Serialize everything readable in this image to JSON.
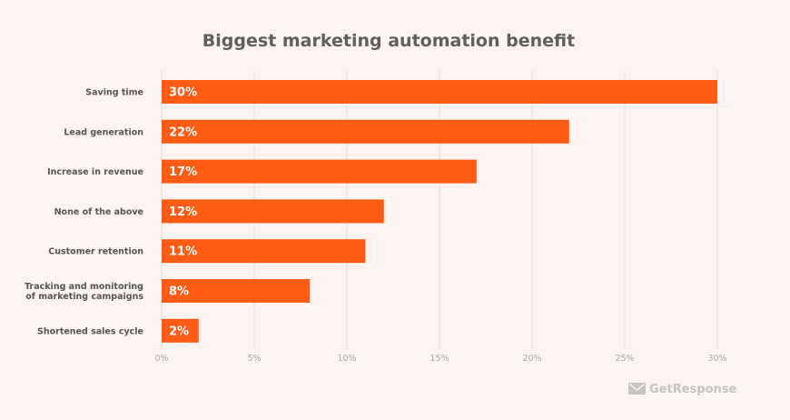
{
  "chart_data": {
    "type": "bar",
    "orientation": "horizontal",
    "title": "Biggest marketing automation benefit",
    "categories": [
      [
        "Saving time"
      ],
      [
        "Lead generation"
      ],
      [
        "Increase in revenue"
      ],
      [
        "None of the above"
      ],
      [
        "Customer retention"
      ],
      [
        "Tracking and monitoring",
        "of marketing campaigns"
      ],
      [
        "Shortened sales cycle"
      ]
    ],
    "values": [
      30,
      22,
      17,
      12,
      11,
      8,
      2
    ],
    "value_labels": [
      "30%",
      "22%",
      "17%",
      "12%",
      "11%",
      "8%",
      "2%"
    ],
    "xlim": [
      0,
      30
    ],
    "xticks": [
      0,
      5,
      10,
      15,
      20,
      25,
      30
    ],
    "xtick_labels": [
      "0%",
      "5%",
      "10%",
      "15%",
      "20%",
      "25%",
      "30%"
    ],
    "grid": true,
    "bar_color": "#fe5b14",
    "background_color": "#fdf3f0",
    "legend": "none"
  },
  "brand": {
    "name": "GetResponse",
    "icon": "envelope-icon",
    "color": "#c4c4c4"
  }
}
